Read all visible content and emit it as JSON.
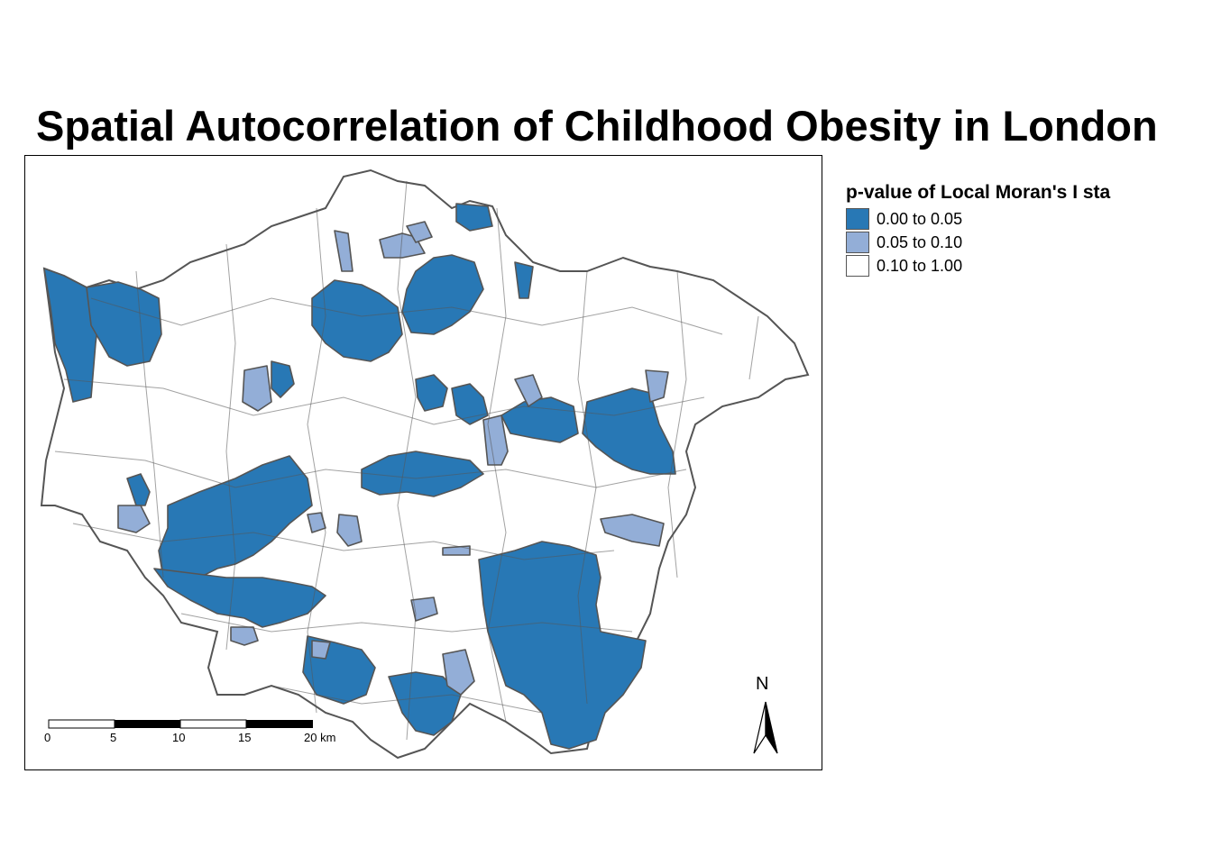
{
  "title": "Spatial Autocorrelation of Childhood Obesity in London",
  "legend": {
    "title": "p-value of Local Moran's I sta",
    "items": [
      {
        "label": "0.00 to 0.05",
        "color": "#2878b5"
      },
      {
        "label": "0.05 to 0.10",
        "color": "#93aed7"
      },
      {
        "label": "0.10 to 1.00",
        "color": "#ffffff"
      }
    ]
  },
  "scale_bar": {
    "ticks": [
      "0",
      "5",
      "10",
      "15",
      "20 km"
    ]
  },
  "north_arrow": {
    "label": "N"
  },
  "colors": {
    "significant": "#2878b5",
    "marginal": "#93aed7",
    "not_significant": "#ffffff",
    "boundary": "#555555"
  }
}
